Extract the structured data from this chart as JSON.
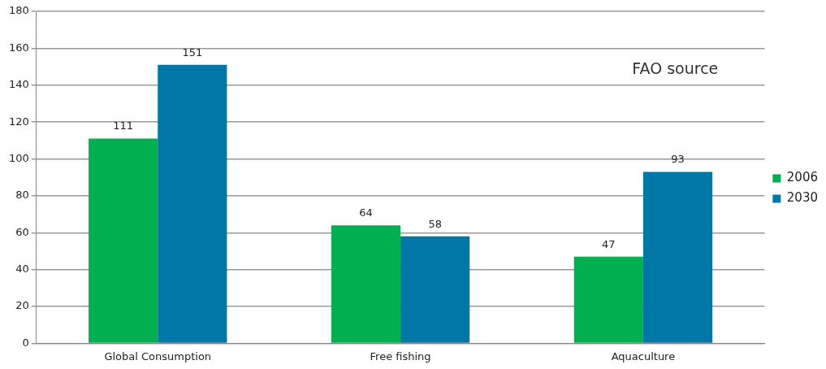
{
  "chart_data": {
    "type": "bar",
    "categories": [
      "Global Consumption",
      "Free fishing",
      "Aquaculture"
    ],
    "series": [
      {
        "name": "2006",
        "color": "#00b050",
        "values": [
          111,
          64,
          47
        ]
      },
      {
        "name": "2030",
        "color": "#0077a6",
        "values": [
          151,
          58,
          93
        ]
      }
    ],
    "ylim": [
      0,
      180
    ],
    "yticks": [
      0,
      20,
      40,
      60,
      80,
      100,
      120,
      140,
      160,
      180
    ],
    "grid": "y",
    "legend": "right",
    "data_labels": true,
    "annotations": [
      "FAO source"
    ]
  }
}
